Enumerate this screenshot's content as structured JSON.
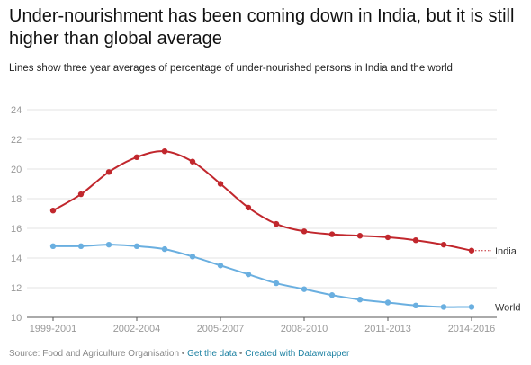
{
  "header": {
    "title": "Under-nourishment has been coming down in India, but it is still higher than global average",
    "subtitle": "Lines show three year averages of percentage of under-nourished persons in India and the world"
  },
  "footer": {
    "source": "Source: Food and Agriculture Organisation",
    "sep": "•",
    "get_data": "Get the data",
    "created_with": "Created with Datawrapper"
  },
  "chart_data": {
    "type": "line",
    "x": [
      "1999-2001",
      "2000-2002",
      "2001-2003",
      "2002-2004",
      "2003-2005",
      "2004-2006",
      "2005-2007",
      "2006-2008",
      "2007-2009",
      "2008-2010",
      "2009-2011",
      "2010-2012",
      "2011-2013",
      "2012-2014",
      "2013-2015",
      "2014-2016"
    ],
    "x_tick_labels": [
      "1999-2001",
      "2002-2004",
      "2005-2007",
      "2008-2010",
      "2011-2013",
      "2014-2016"
    ],
    "y_ticks": [
      10,
      12,
      14,
      16,
      18,
      20,
      22,
      24
    ],
    "ylim": [
      10,
      24
    ],
    "grid": true,
    "series": [
      {
        "name": "India",
        "color": "#c1272d",
        "values": [
          17.2,
          18.3,
          19.8,
          20.8,
          21.2,
          20.5,
          19.0,
          17.4,
          16.3,
          15.8,
          15.6,
          15.5,
          15.4,
          15.2,
          14.9,
          14.5
        ]
      },
      {
        "name": "World",
        "color": "#6aafe0",
        "values": [
          14.8,
          14.8,
          14.9,
          14.8,
          14.6,
          14.1,
          13.5,
          12.9,
          12.3,
          11.9,
          11.5,
          11.2,
          11.0,
          10.8,
          10.7,
          10.7
        ]
      }
    ]
  }
}
